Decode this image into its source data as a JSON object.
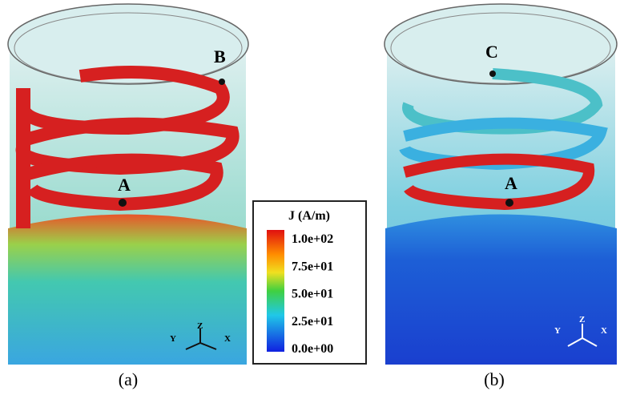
{
  "panels": [
    {
      "label": "(a)",
      "points": [
        "B",
        "A"
      ],
      "axes": [
        "Y",
        "Z",
        "X"
      ]
    },
    {
      "label": "(b)",
      "points": [
        "C",
        "A"
      ],
      "axes": [
        "Y",
        "Z",
        "X"
      ]
    }
  ],
  "legend": {
    "title": "J (A/m)",
    "ticks": [
      "1.0e+02",
      "7.5e+01",
      "5.0e+01",
      "2.5e+01",
      "0.0e+00"
    ]
  }
}
